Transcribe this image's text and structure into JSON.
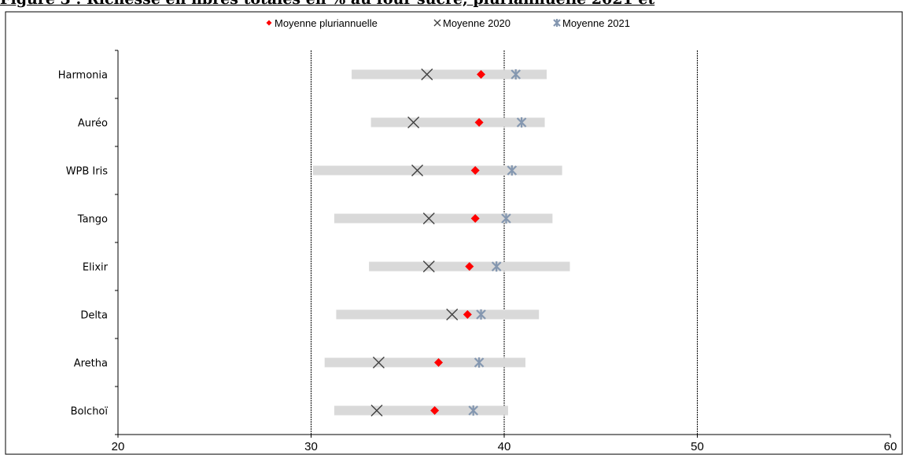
{
  "figure": {
    "title": "Figure 3 : Richesse en fibres totales en % au four sucré, pluriannuelle 2021 et"
  },
  "chart_data": {
    "type": "scatter",
    "orientation": "horizontal",
    "categories": [
      "Harmonia",
      "Auréo",
      "WPB Iris",
      "Tango",
      "Elixir",
      "Delta",
      "Aretha",
      "Bolchoï"
    ],
    "range_bars": [
      {
        "min": 32.1,
        "max": 42.2
      },
      {
        "min": 33.1,
        "max": 42.1
      },
      {
        "min": 30.1,
        "max": 43.0
      },
      {
        "min": 31.2,
        "max": 42.5
      },
      {
        "min": 33.0,
        "max": 43.4
      },
      {
        "min": 31.3,
        "max": 41.8
      },
      {
        "min": 30.7,
        "max": 41.1
      },
      {
        "min": 31.2,
        "max": 40.2
      }
    ],
    "series": [
      {
        "name": "Moyenne pluriannuelle",
        "marker": "diamond",
        "color": "#ff0000",
        "values": [
          38.8,
          38.7,
          38.5,
          38.5,
          38.2,
          38.1,
          36.6,
          36.4
        ]
      },
      {
        "name": "Moyenne 2020",
        "marker": "x",
        "color": "#404040",
        "values": [
          36.0,
          35.3,
          35.5,
          36.1,
          36.1,
          37.3,
          33.5,
          33.4
        ]
      },
      {
        "name": "Moyenne 2021",
        "marker": "asterisk",
        "color": "#8497b0",
        "values": [
          40.6,
          40.9,
          40.4,
          40.1,
          39.6,
          38.8,
          38.7,
          38.4
        ]
      }
    ],
    "xlim": [
      20,
      60
    ],
    "xticks": [
      20,
      30,
      40,
      50,
      60
    ],
    "grid_x": [
      30,
      40,
      50
    ],
    "legend_position": "top",
    "xlabel": "",
    "ylabel": ""
  }
}
